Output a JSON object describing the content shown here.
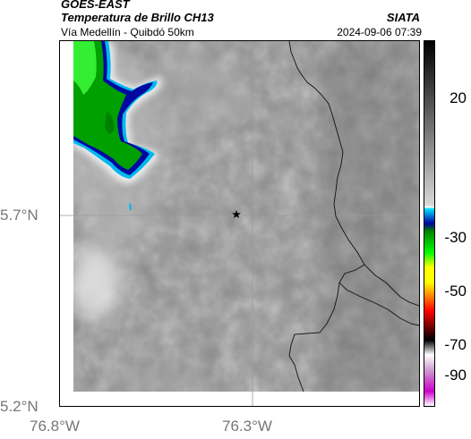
{
  "header": {
    "line1": "GOES-EAST",
    "line2": "Temperatura de Brillo CH13",
    "line3": "Vía Medellín - Quibdó 50km",
    "source": "SIATA",
    "datetime": "2024-09-06 07:39"
  },
  "map": {
    "lat_labels": [
      "5.7°N",
      "5.2°N"
    ],
    "lon_labels": [
      "76.8°W",
      "76.3°W"
    ],
    "marker_icon": "star-icon"
  },
  "colorbar": {
    "ticks": [
      "20",
      "-30",
      "-50",
      "-70",
      "-90"
    ],
    "colors": {
      "warm": "#808080",
      "white": "#ffffff",
      "cyan": "#00c8ff",
      "blue": "#000090",
      "green": "#00dd00",
      "yellow": "#ffff00",
      "red": "#ff0000",
      "black": "#000000",
      "magenta": "#cc00cc"
    }
  }
}
